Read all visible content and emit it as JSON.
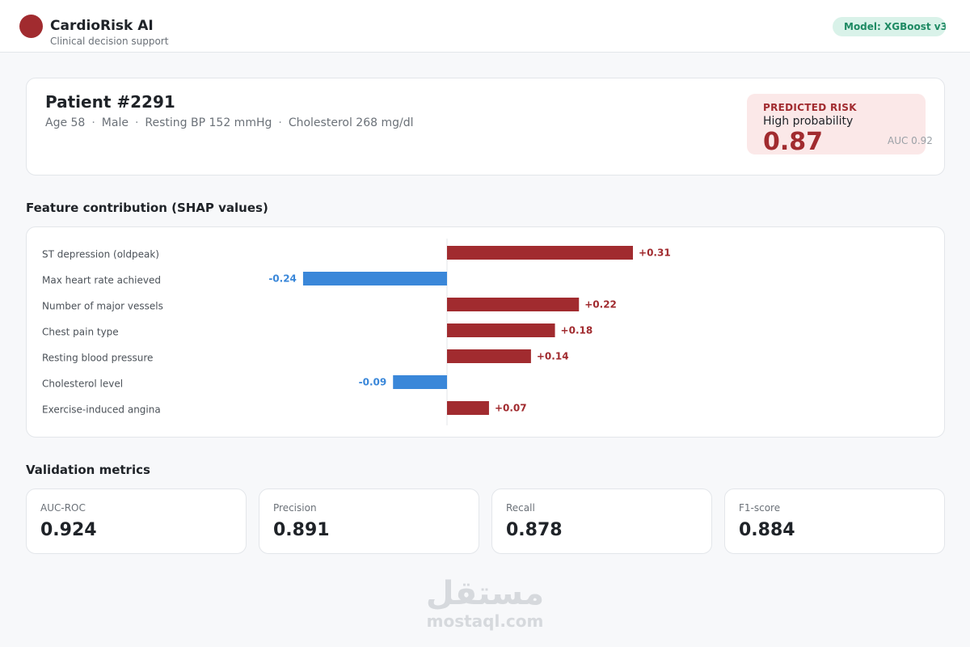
{
  "app": {
    "title": "CardioRisk AI",
    "subtitle": "Clinical decision support",
    "model_badge": "Model: XGBoost v3",
    "logo_color": "#a12b2f"
  },
  "patient": {
    "title": "Patient #2291",
    "meta": [
      "Age 58",
      "Male",
      "Resting BP 152 mmHg",
      "Cholesterol 268 mg/dl"
    ],
    "meta_separator": "·",
    "risk_label": "PREDICTED RISK",
    "risk_desc": "High probability",
    "risk_value": "0.87",
    "auc_note": "AUC 0.92"
  },
  "shap": {
    "section_title": "Feature contribution (SHAP values)"
  },
  "chart_data": {
    "type": "bar",
    "orientation": "horizontal",
    "title": "Feature contribution (SHAP values)",
    "categories": [
      "ST depression (oldpeak)",
      "Max heart rate achieved",
      "Number of major vessels",
      "Chest pain type",
      "Resting blood pressure",
      "Cholesterol level",
      "Exercise-induced angina"
    ],
    "values": [
      0.31,
      -0.24,
      0.22,
      0.18,
      0.14,
      -0.09,
      0.07
    ],
    "value_labels": [
      "+0.31",
      "-0.24",
      "+0.22",
      "+0.18",
      "+0.14",
      "-0.09",
      "+0.07"
    ],
    "positive_color": "#a12b2f",
    "negative_color": "#3a87d9",
    "grid": false
  },
  "metrics": {
    "section_title": "Validation metrics",
    "items": [
      {
        "label": "AUC-ROC",
        "value": "0.924"
      },
      {
        "label": "Precision",
        "value": "0.891"
      },
      {
        "label": "Recall",
        "value": "0.878"
      },
      {
        "label": "F1-score",
        "value": "0.884"
      }
    ]
  },
  "watermark": {
    "arabic": "مستقل",
    "latin": "mostaql.com"
  }
}
